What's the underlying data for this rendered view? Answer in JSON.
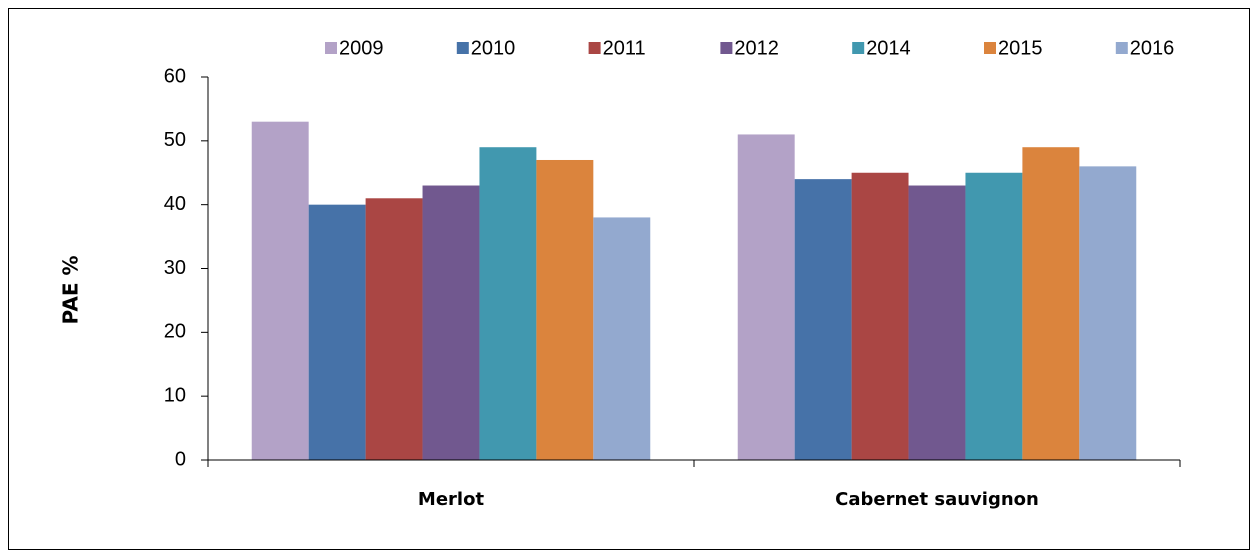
{
  "chart_data": {
    "type": "bar",
    "y_label": "PAE %",
    "categories": [
      "Merlot",
      "Cabernet sauvignon"
    ],
    "series": [
      {
        "name": "2009",
        "color": "#b3a2c7",
        "values": [
          53,
          51
        ]
      },
      {
        "name": "2010",
        "color": "#4672a8",
        "values": [
          40,
          44
        ]
      },
      {
        "name": "2011",
        "color": "#aa4644",
        "values": [
          41,
          45
        ]
      },
      {
        "name": "2012",
        "color": "#71588f",
        "values": [
          43,
          43
        ]
      },
      {
        "name": "2014",
        "color": "#4198af",
        "values": [
          49,
          45
        ]
      },
      {
        "name": "2015",
        "color": "#db843d",
        "values": [
          47,
          49
        ]
      },
      {
        "name": "2016",
        "color": "#93a9cf",
        "values": [
          38,
          46
        ]
      }
    ],
    "ylim": [
      0,
      60
    ],
    "yticks": [
      0,
      10,
      20,
      30,
      40,
      50,
      60
    ],
    "grid": false,
    "legend": "top"
  }
}
